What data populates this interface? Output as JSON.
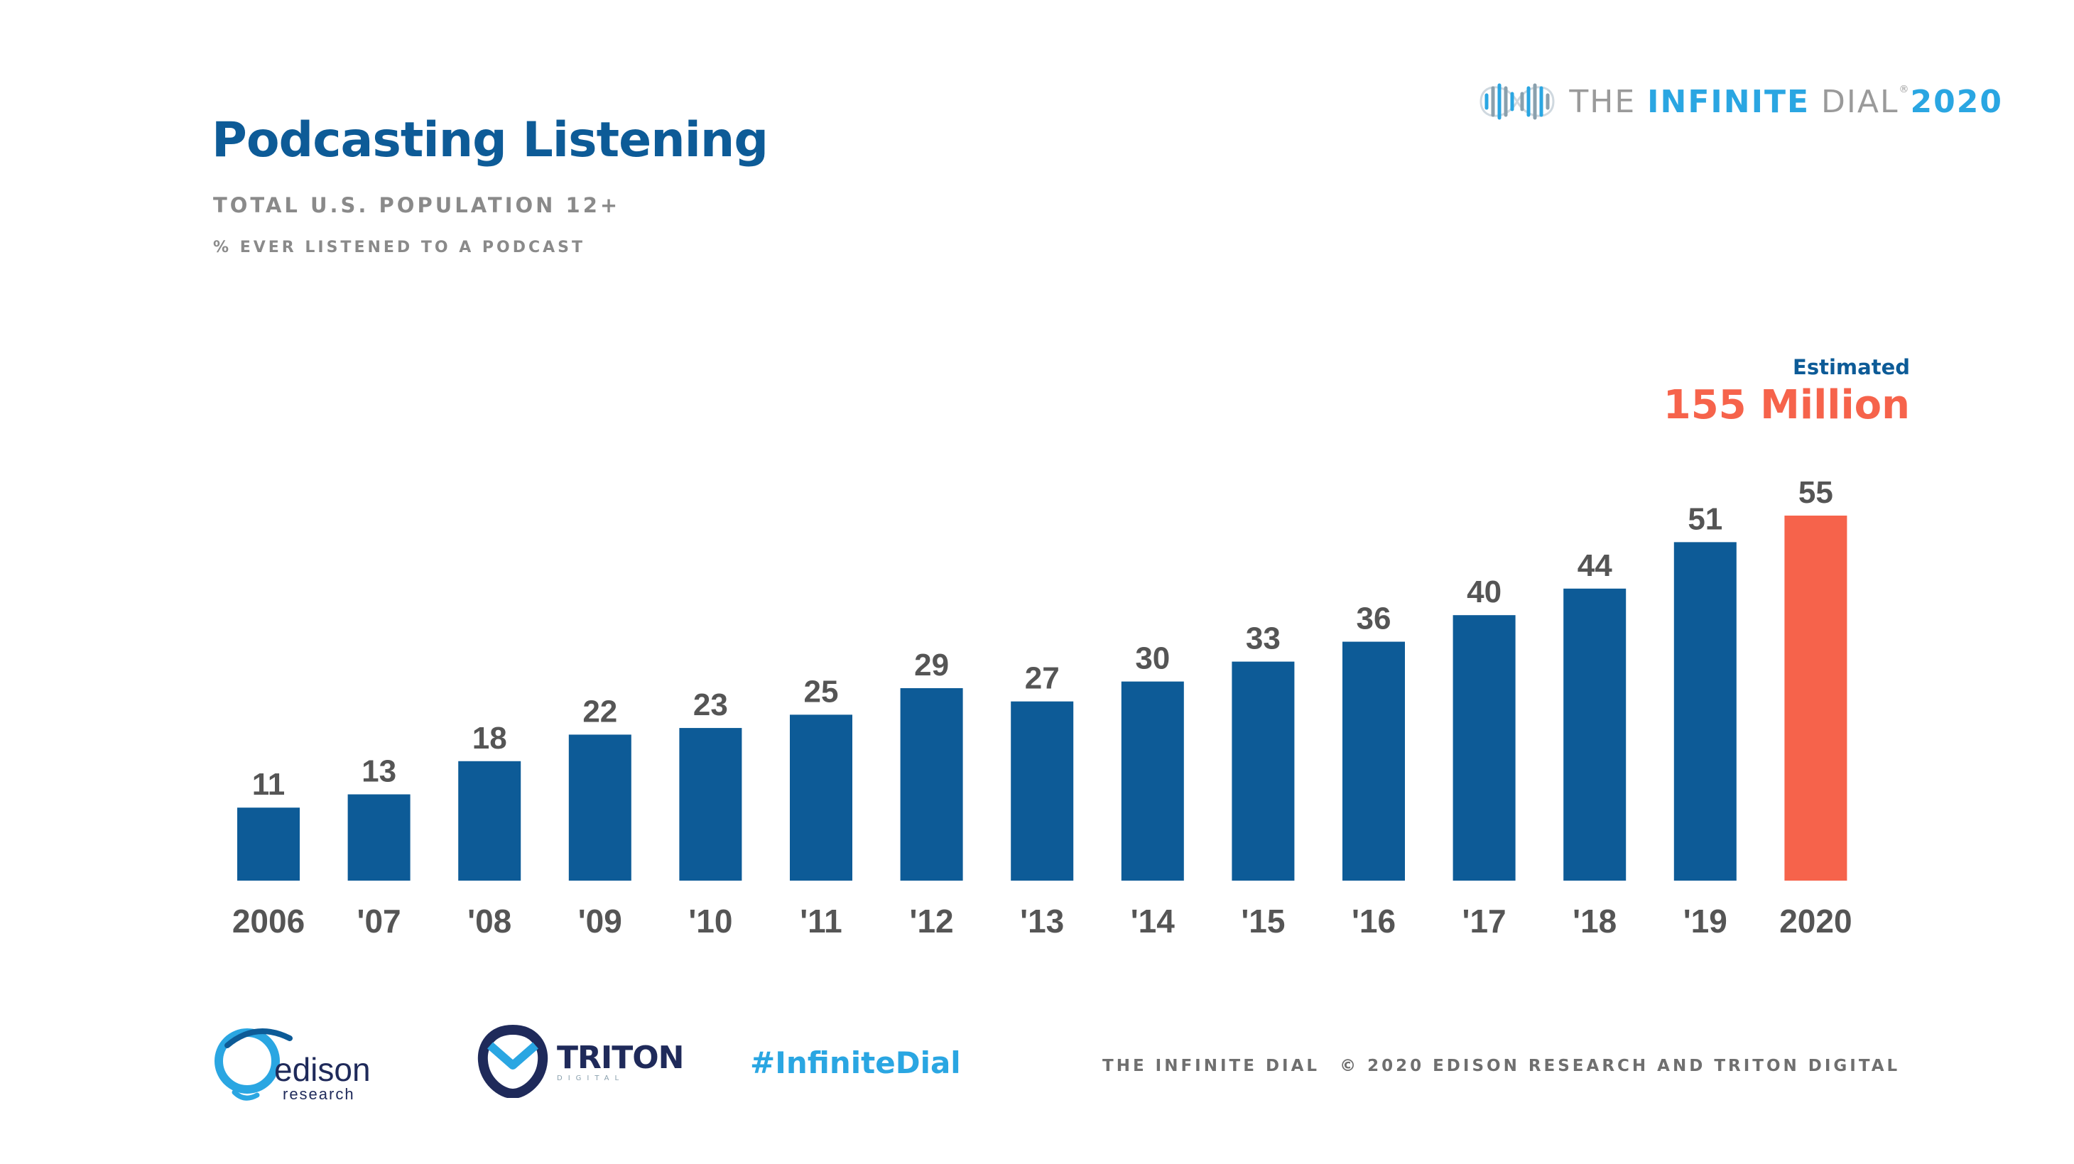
{
  "header": {
    "title": "Podcasting Listening",
    "subtitle": "TOTAL U.S. POPULATION 12+",
    "measure": "% EVER LISTENED TO A PODCAST"
  },
  "brand": {
    "prefix": "THE ",
    "name": "INFINITE",
    "suffix": " DIAL",
    "reg": "®",
    "year": "2020",
    "icon": "infinity-waveform-logo"
  },
  "estimate": {
    "label": "Estimated",
    "value": "155 Million"
  },
  "colors": {
    "bar": "#0d5b97",
    "highlight": "#f6634b",
    "title": "#0d5b97",
    "label": "#555555"
  },
  "chart_data": {
    "type": "bar",
    "categories": [
      "2006",
      "'07",
      "'08",
      "'09",
      "'10",
      "'11",
      "'12",
      "'13",
      "'14",
      "'15",
      "'16",
      "'17",
      "'18",
      "'19",
      "2020"
    ],
    "values": [
      11,
      13,
      18,
      22,
      23,
      25,
      29,
      27,
      30,
      33,
      36,
      40,
      44,
      51,
      55
    ],
    "highlight_index": 14,
    "data_labels": true,
    "ylim": [
      0,
      55
    ],
    "grid": false,
    "legend": "none",
    "title": "Podcasting Listening",
    "xlabel": "",
    "ylabel": ""
  },
  "footer": {
    "edison_logo": "edison",
    "edison_sub": "research",
    "triton_logo": "TRITON",
    "triton_sub": "DIGITAL",
    "hashtag": "#InfiniteDial",
    "dial_text": "THE INFINITE DIAL",
    "copyright": "© 2020 EDISON RESEARCH AND TRITON DIGITAL"
  }
}
